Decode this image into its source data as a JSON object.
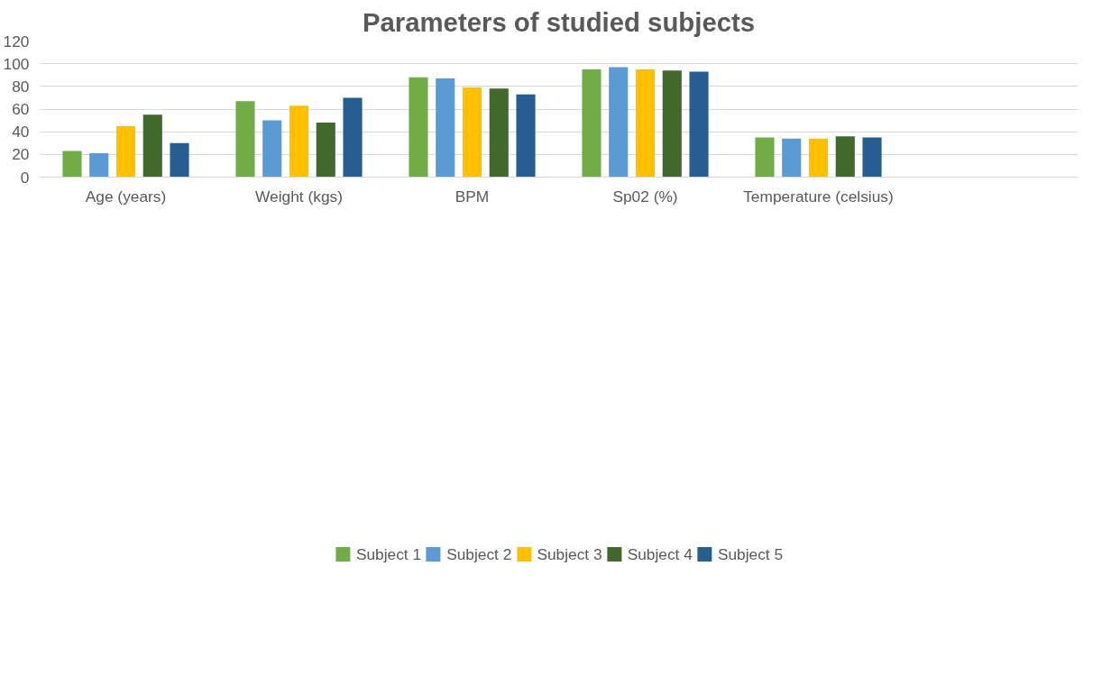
{
  "chart_data": {
    "type": "bar",
    "title": "Parameters of studied subjects",
    "categories": [
      "Age (years)",
      "Weight (kgs)",
      "BPM",
      "Sp02 (%)",
      "Temperature (celsius)",
      null
    ],
    "series": [
      {
        "name": "Subject 1",
        "color": "#70ad47",
        "values": [
          23,
          67,
          88,
          95,
          35,
          null
        ]
      },
      {
        "name": "Subject 2",
        "color": "#5b9bd5",
        "values": [
          21,
          50,
          87,
          97,
          34,
          null
        ]
      },
      {
        "name": "Subject 3",
        "color": "#ffc000",
        "values": [
          45,
          63,
          79,
          95,
          34,
          null
        ]
      },
      {
        "name": "Subject 4",
        "color": "#43682b",
        "values": [
          55,
          48,
          78,
          94,
          36,
          null
        ]
      },
      {
        "name": "Subject 5",
        "color": "#255e91",
        "values": [
          30,
          70,
          73,
          93,
          35,
          null
        ]
      }
    ],
    "ylim": [
      0,
      120
    ],
    "yticks": [
      0,
      20,
      40,
      60,
      80,
      100,
      120
    ],
    "grid": "y",
    "legend": "bottom"
  }
}
